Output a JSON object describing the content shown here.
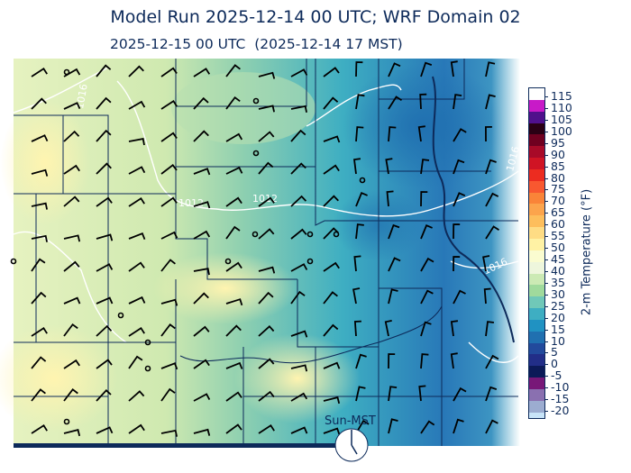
{
  "header": {
    "title": "Model Run 2025-12-14 00 UTC; WRF Domain 02",
    "valid_time": "2025-12-15 00 UTC  (2025-12-14 17 MST)"
  },
  "map": {
    "variable": "2-m Temperature",
    "contour_color": "#ffffff",
    "contour_labels": [
      "1016",
      "1012",
      "1012",
      "1016",
      "1016"
    ],
    "boundary_color": "#0d2a5a"
  },
  "colorbar": {
    "label": "2-m Temperature (°F)",
    "ticks": [
      "115",
      "110",
      "105",
      "100",
      "95",
      "90",
      "85",
      "80",
      "75",
      "70",
      "65",
      "60",
      "55",
      "50",
      "45",
      "40",
      "35",
      "30",
      "25",
      "20",
      "15",
      "10",
      "5",
      "0",
      "-5",
      "-10",
      "-15",
      "-20"
    ],
    "colors": [
      "#ffffff",
      "#c81ac8",
      "#50108c",
      "#2a0014",
      "#700020",
      "#a80a28",
      "#d01424",
      "#ec2c20",
      "#f85830",
      "#fa8438",
      "#fca44c",
      "#fdbe5c",
      "#fedc84",
      "#fff2a4",
      "#fafcd0",
      "#eef6dc",
      "#cceab4",
      "#a0da9c",
      "#70c8b8",
      "#3eaec2",
      "#2092c2",
      "#2070b0",
      "#224a9c",
      "#222e88",
      "#0c1a58",
      "#781878",
      "#8a70b0",
      "#9cacd0",
      "#c8e4f8"
    ]
  },
  "clock": {
    "label": "Sun-MST",
    "icon": "clock-icon"
  }
}
